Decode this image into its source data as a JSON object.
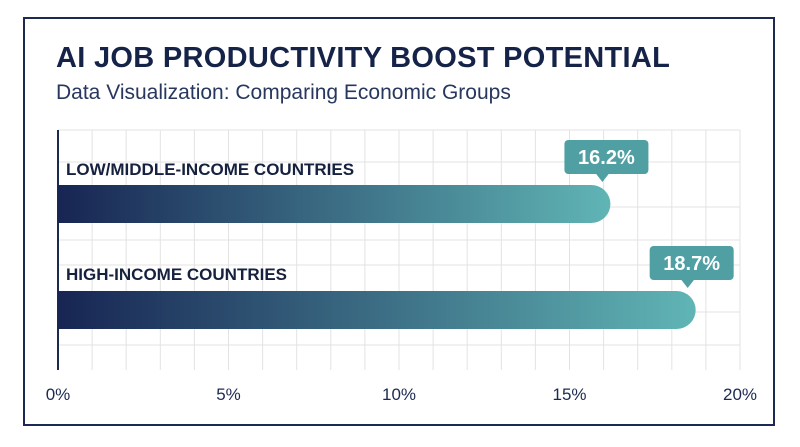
{
  "header": {
    "title": "AI JOB PRODUCTIVITY BOOST POTENTIAL",
    "subtitle": "Data Visualization: Comparing Economic Groups"
  },
  "colors": {
    "bar_start": "#172553",
    "bar_end": "#60b5b5",
    "callout": "#4f9fa3",
    "axis": "#1c2a52",
    "grid": "#e3e3e3"
  },
  "chart_data": {
    "type": "bar",
    "orientation": "horizontal",
    "categories": [
      "LOW/MIDDLE-INCOME COUNTRIES",
      "HIGH-INCOME COUNTRIES"
    ],
    "values": [
      16.2,
      18.7
    ],
    "value_labels": [
      "16.2%",
      "18.7%"
    ],
    "xlim": [
      0,
      20
    ],
    "x_ticks": [
      0,
      5,
      10,
      15,
      20
    ],
    "x_tick_labels": [
      "0%",
      "5%",
      "10%",
      "15%",
      "20%"
    ],
    "grid": true
  }
}
